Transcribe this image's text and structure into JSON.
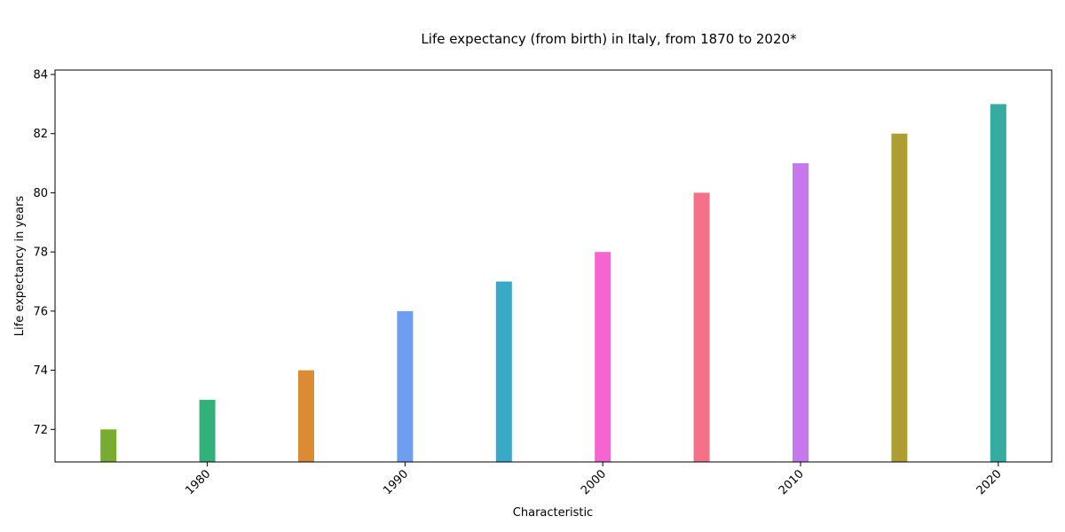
{
  "chart_data": {
    "type": "bar",
    "title": "Life expectancy (from birth) in Italy, from 1870 to 2020*",
    "xlabel": "Characteristic",
    "ylabel": "Life expectancy in years",
    "x": [
      1975,
      1980,
      1985,
      1990,
      1995,
      2000,
      2005,
      2010,
      2015,
      2020
    ],
    "values": [
      72,
      73,
      74,
      76,
      77,
      78,
      80,
      81,
      82,
      83
    ],
    "bar_colors": [
      "#77ac30",
      "#33b17a",
      "#dd8a34",
      "#6f9df2",
      "#38a9c6",
      "#f564d0",
      "#f57188",
      "#c678ef",
      "#ae9d31",
      "#35ac9f"
    ],
    "xlim": [
      1972.3,
      2022.7
    ],
    "ylim": [
      70.9,
      84.15
    ],
    "xticks": [
      1980,
      1990,
      2000,
      2010,
      2020
    ],
    "yticks": [
      72,
      74,
      76,
      78,
      80,
      82,
      84
    ],
    "grid": false,
    "legend": "none"
  }
}
